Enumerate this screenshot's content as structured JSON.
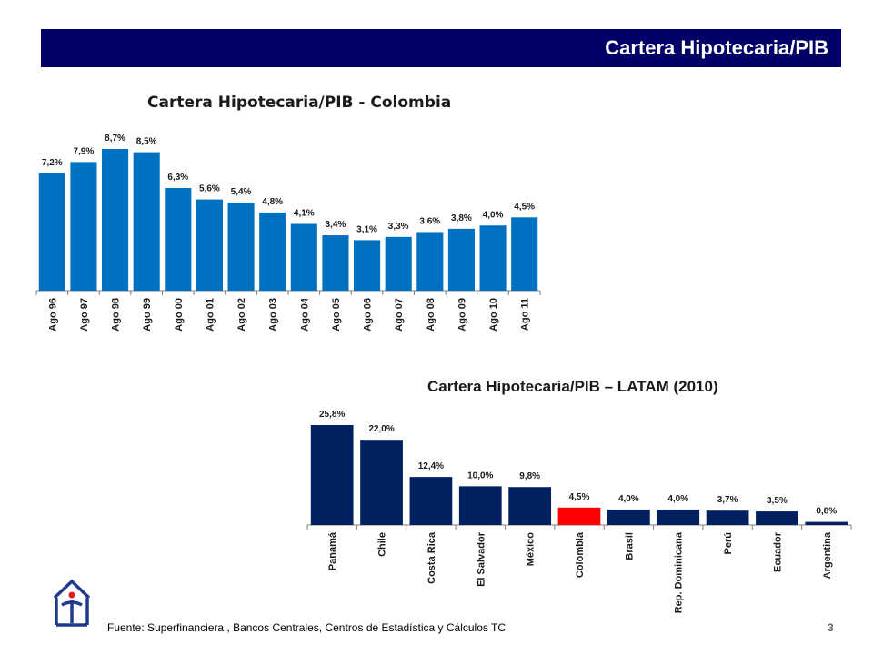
{
  "header": {
    "title": "Cartera Hipotecaria/PIB"
  },
  "colors": {
    "header_bg": "#000066",
    "bar_colombia_series": "#0070C0",
    "bar_latam": "#002060",
    "bar_highlight": "#FF0000"
  },
  "chart_data": [
    {
      "type": "bar",
      "title": "Cartera Hipotecaria/PIB  - Colombia",
      "categories": [
        "Ago 96",
        "Ago 97",
        "Ago 98",
        "Ago 99",
        "Ago 00",
        "Ago 01",
        "Ago 02",
        "Ago 03",
        "Ago 04",
        "Ago 05",
        "Ago 06",
        "Ago 07",
        "Ago 08",
        "Ago 09",
        "Ago 10",
        "Ago 11"
      ],
      "values": [
        7.2,
        7.9,
        8.7,
        8.5,
        6.3,
        5.6,
        5.4,
        4.8,
        4.1,
        3.4,
        3.1,
        3.3,
        3.6,
        3.8,
        4.0,
        4.5
      ],
      "labels": [
        "7,2%",
        "7,9%",
        "8,7%",
        "8,5%",
        "6,3%",
        "5,6%",
        "5,4%",
        "4,8%",
        "4,1%",
        "3,4%",
        "3,1%",
        "3,3%",
        "3,6%",
        "3,8%",
        "4,0%",
        "4,5%"
      ],
      "ylim": [
        0,
        8.7
      ],
      "grid": false
    },
    {
      "type": "bar",
      "title": "Cartera Hipotecaria/PIB – LATAM (2010)",
      "categories": [
        "Panamá",
        "Chile",
        "Costa Rica",
        "El Salvador",
        "México",
        "Colombia",
        "Brasil",
        "Rep. Dominicana",
        "Perú",
        "Ecuador",
        "Argentina"
      ],
      "values": [
        25.8,
        22.0,
        12.4,
        10.0,
        9.8,
        4.5,
        4.0,
        4.0,
        3.7,
        3.5,
        0.8
      ],
      "labels": [
        "25,8%",
        "22,0%",
        "12,4%",
        "10,0%",
        "9,8%",
        "4,5%",
        "4,0%",
        "4,0%",
        "3,7%",
        "3,5%",
        "0,8%"
      ],
      "highlight": "Colombia",
      "ylim": [
        0,
        25.8
      ],
      "grid": false
    }
  ],
  "footer": {
    "source": "Fuente: Superfinanciera , Bancos Centrales, Centros de Estadística y Cálculos TC",
    "page": "3"
  }
}
